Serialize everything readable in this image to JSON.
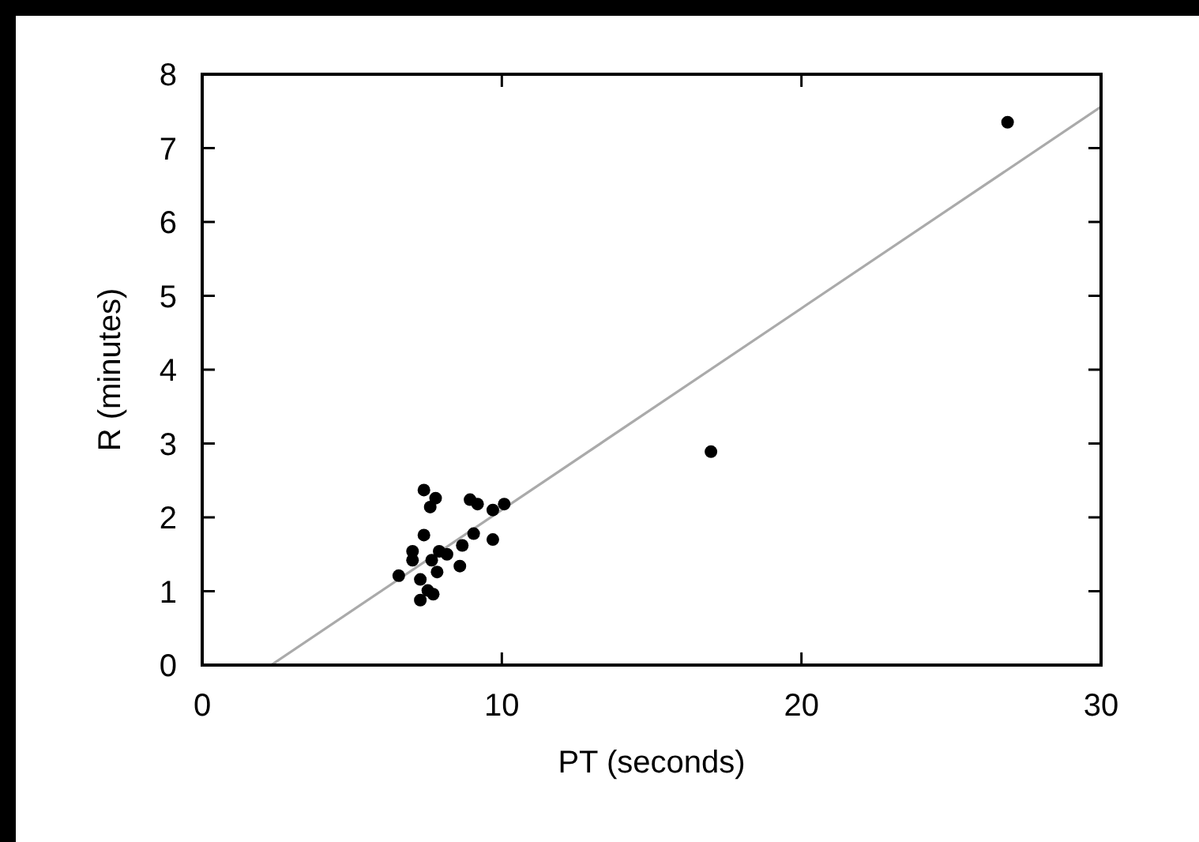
{
  "chart_data": {
    "type": "scatter",
    "xlabel": "PT (seconds)",
    "ylabel": "R (minutes)",
    "xlim": [
      0,
      30
    ],
    "ylim": [
      0,
      8
    ],
    "xticks": [
      0,
      10,
      20,
      30
    ],
    "yticks": [
      0,
      1,
      2,
      3,
      4,
      5,
      6,
      7,
      8
    ],
    "grid": false,
    "series": [
      {
        "color": "#000000",
        "marker": "circle",
        "x": [
          7.4,
          7.79,
          7.61,
          8.94,
          9.19,
          9.7,
          10.08,
          7.4,
          7.02,
          7.02,
          6.56,
          7.91,
          7.66,
          7.84,
          7.28,
          7.53,
          7.28,
          7.71,
          8.68,
          9.06,
          9.7,
          8.6,
          8.17,
          16.98,
          26.88
        ],
        "values": [
          2.37,
          2.26,
          2.14,
          2.24,
          2.18,
          2.1,
          2.18,
          1.76,
          1.54,
          1.42,
          1.21,
          1.54,
          1.42,
          1.26,
          1.16,
          1.01,
          0.88,
          0.96,
          1.62,
          1.78,
          1.7,
          1.34,
          1.5,
          2.89,
          7.35
        ]
      },
      {
        "type": "line",
        "color": "#aaaaaa",
        "line_style": "solid",
        "x": [
          2.3,
          30
        ],
        "values": [
          0,
          7.56
        ]
      }
    ]
  }
}
